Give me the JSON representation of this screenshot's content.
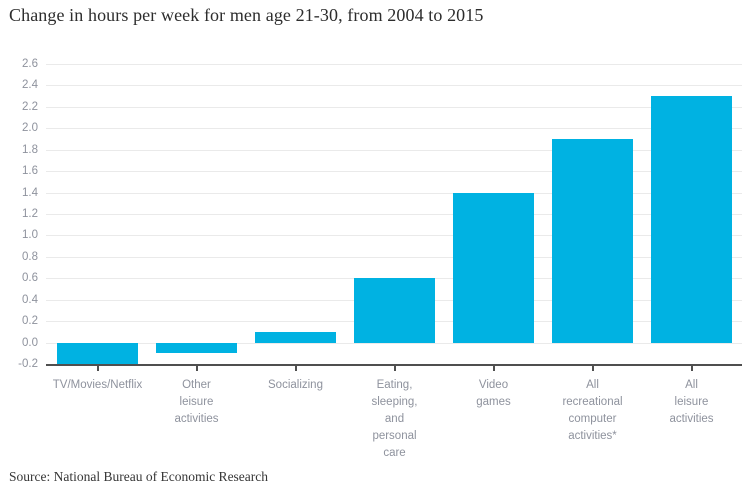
{
  "title": "Change in hours per week for men age 21-30, from 2004 to 2015",
  "source": "Source: National Bureau of Economic Research",
  "colors": {
    "bar": "#00b2e2",
    "gridline": "#eaeaea",
    "axis": "#4f4f4f",
    "tick_label": "#8e929d",
    "title_text": "#2d2d2d",
    "source_text": "#363636"
  },
  "chart_data": {
    "type": "bar",
    "title": "Change in hours per week for men age 21-30, from 2004 to 2015",
    "categories": [
      "TV/Movies/Netflix",
      "Other\nleisure\nactivities",
      "Socializing",
      "Eating,\nsleeping,\nand\npersonal\ncare",
      "Video\ngames",
      "All\nrecreational\ncomputer\nactivities*",
      "All\nleisure\nactivities"
    ],
    "values": [
      -0.2,
      -0.1,
      0.1,
      0.6,
      1.4,
      1.9,
      2.3
    ],
    "xlabel": "",
    "ylabel": "",
    "ylim": [
      -0.2,
      2.6
    ],
    "ytick_step": 0.2,
    "yticks": [
      2.6,
      2.4,
      2.2,
      2.0,
      1.8,
      1.6,
      1.4,
      1.2,
      1.0,
      0.8,
      0.6,
      0.4,
      0.2,
      0.0,
      -0.2
    ],
    "grid": true,
    "legend": "none",
    "source": "Source: National Bureau of Economic Research"
  }
}
